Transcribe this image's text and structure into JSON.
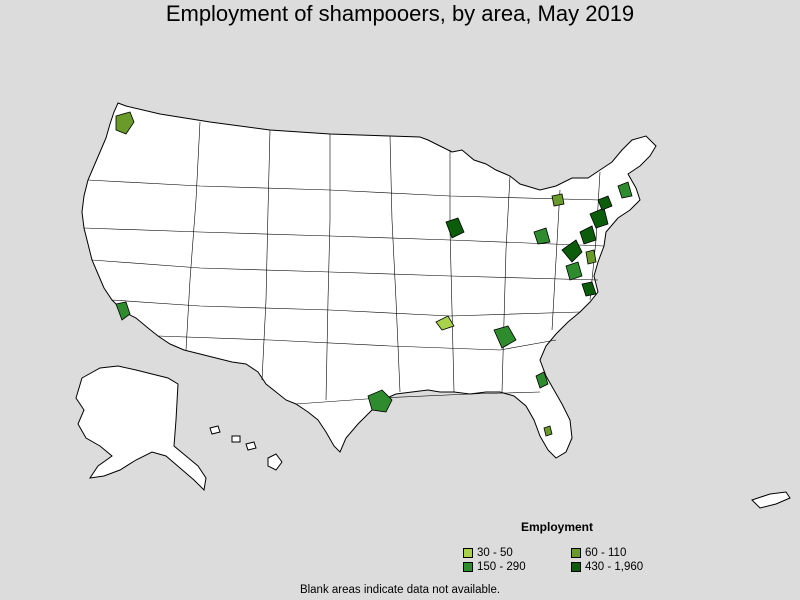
{
  "title": "Employment of shampooers, by area, May 2019",
  "legend": {
    "title": "Employment",
    "items": [
      {
        "label": "30 - 50",
        "color": "#a8d24a"
      },
      {
        "label": "60 - 110",
        "color": "#6a9a2a"
      },
      {
        "label": "150 - 290",
        "color": "#2e8b2e"
      },
      {
        "label": "430 - 1,960",
        "color": "#0b5d0b"
      }
    ]
  },
  "footnote": "Blank areas indicate data not available.",
  "colors": {
    "background": "#dcdcdc",
    "land": "#ffffff",
    "border": "#000000"
  }
}
